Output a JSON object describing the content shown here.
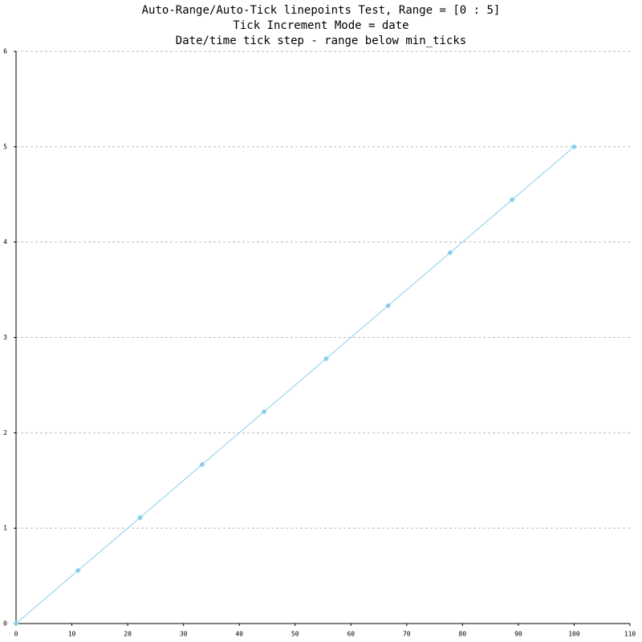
{
  "chart_data": {
    "type": "line",
    "title": [
      "Auto-Range/Auto-Tick linepoints Test, Range = [0 : 5]",
      "Tick Increment Mode = date",
      "Date/time tick step - range below min_ticks"
    ],
    "x": [
      0,
      11.11,
      22.22,
      33.33,
      44.44,
      55.56,
      66.67,
      77.78,
      88.89,
      100
    ],
    "series": [
      {
        "color": "#87ceeb",
        "values": [
          0,
          0.556,
          1.111,
          1.667,
          2.222,
          2.778,
          3.333,
          3.889,
          4.444,
          5
        ]
      }
    ],
    "xlim": [
      0,
      110
    ],
    "xticks": [
      0,
      10,
      20,
      30,
      40,
      50,
      60,
      70,
      80,
      90,
      100,
      110
    ],
    "ylim": [
      0,
      6
    ],
    "yticks": [
      0,
      1,
      2,
      3,
      4,
      5,
      6
    ],
    "grid": true,
    "markers": true
  }
}
